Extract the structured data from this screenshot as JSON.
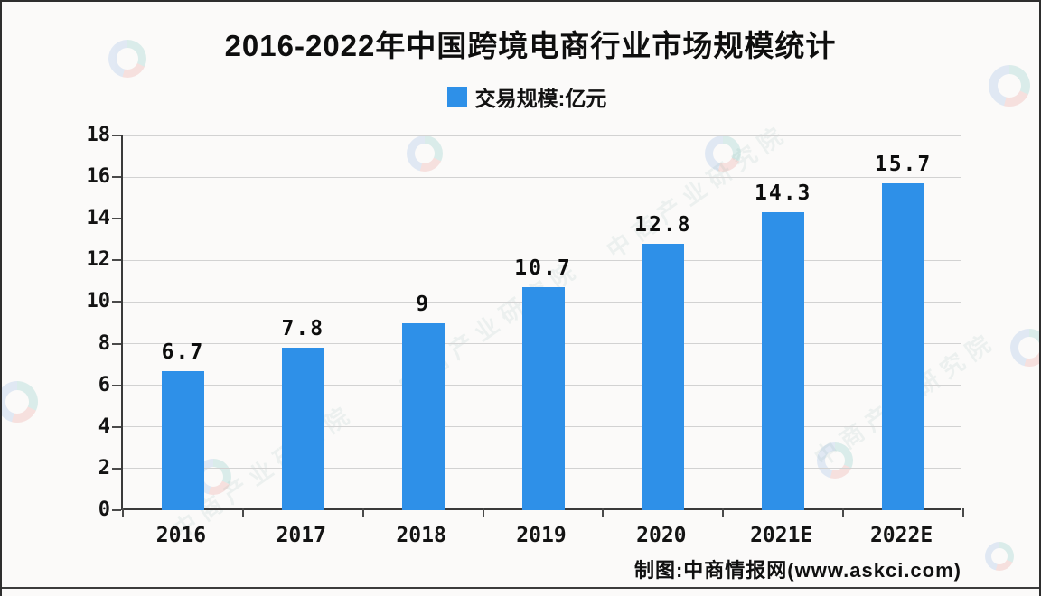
{
  "footer": {
    "credit": "制图:中商情报网(www.askci.com)"
  },
  "watermark": {
    "brand_text": "中商产业研究院"
  },
  "colors": {
    "bar": "#2E90E8",
    "axis": "#3a3a3a",
    "grid": "#d2d2d2",
    "text": "#111111",
    "background": "#fbfaf9"
  },
  "chart_data": {
    "type": "bar",
    "title": "2016-2022年中国跨境电商行业市场规模统计",
    "series_name": "交易规模:亿元",
    "categories": [
      "2016",
      "2017",
      "2018",
      "2019",
      "2020",
      "2021E",
      "2022E"
    ],
    "values": [
      6.7,
      7.8,
      9,
      10.7,
      12.8,
      14.3,
      15.7
    ],
    "value_labels": [
      "6.7",
      "7.8",
      "9",
      "10.7",
      "12.8",
      "14.3",
      "15.7"
    ],
    "ylabel": "亿元",
    "xlabel": "",
    "ylim": [
      0,
      18
    ],
    "yticks": [
      0,
      2,
      4,
      6,
      8,
      10,
      12,
      14,
      16,
      18
    ],
    "grid": true,
    "legend_position": "top-center",
    "bar_color": "#2E90E8"
  }
}
